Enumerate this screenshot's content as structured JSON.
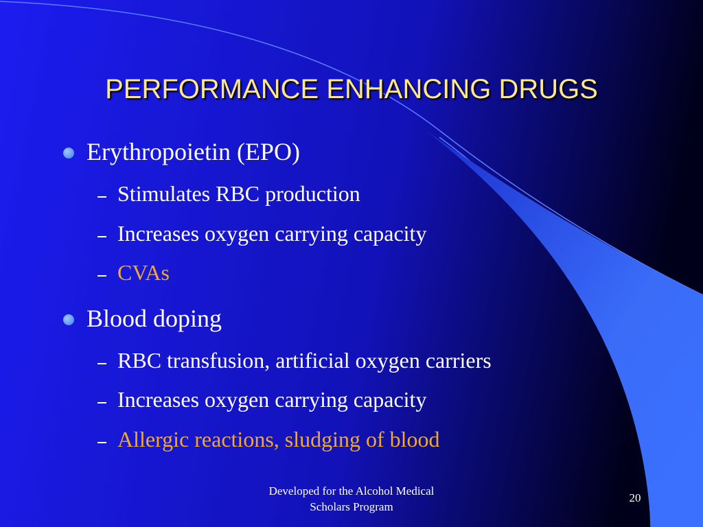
{
  "slide": {
    "title": "PERFORMANCE ENHANCING DRUGS",
    "bullets": [
      {
        "text": "Erythropoietin (EPO)",
        "subs": [
          {
            "text": "Stimulates RBC production",
            "color": "#ffffff"
          },
          {
            "text": "Increases oxygen carrying capacity",
            "color": "#ffffff"
          },
          {
            "text": "CVAs",
            "color": "#f0a830"
          }
        ]
      },
      {
        "text": "Blood doping",
        "subs": [
          {
            "text": "RBC transfusion, artificial oxygen carriers",
            "color": "#ffffff"
          },
          {
            "text": "Increases oxygen carrying capacity",
            "color": "#ffffff"
          },
          {
            "text": "Allergic reactions, sludging of blood",
            "color": "#f0a830"
          }
        ]
      }
    ],
    "footer": "Developed for the Alcohol Medical Scholars Program",
    "page_number": 20
  }
}
